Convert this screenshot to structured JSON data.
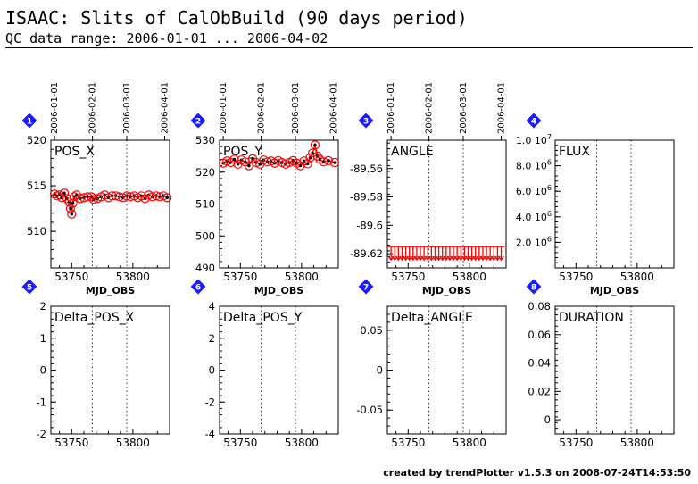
{
  "header": {
    "title": "ISAAC: Slits of CalObBuild (90 days period)",
    "subtitle": "QC data range: 2006-01-01 ... 2006-04-02"
  },
  "footer": {
    "text": "created by trendPlotter v1.5.3 on 2008-07-24T14:53:50"
  },
  "colors": {
    "data_point": "#ff0000",
    "marker_fill": "#000000",
    "badge": "#1a1aff"
  },
  "date_ticks": [
    {
      "label": "2006-01-01",
      "mjd": 53736
    },
    {
      "label": "2006-02-01",
      "mjd": 53767
    },
    {
      "label": "2006-03-01",
      "mjd": 53795
    },
    {
      "label": "2006-04-01",
      "mjd": 53826
    }
  ],
  "chart_data": [
    {
      "type": "scatter",
      "panel_number": "1",
      "label": "POS_X",
      "xlabel": "MJD_OBS",
      "xlabel_shown": true,
      "xlim": [
        53733,
        53830
      ],
      "ylim": [
        506,
        520
      ],
      "xticks": [
        "53750",
        "53800"
      ],
      "xtick_values": [
        53750,
        53800
      ],
      "yticks": [
        "510",
        "515",
        "520"
      ],
      "ytick_values": [
        510,
        515,
        520
      ],
      "date_axis": true,
      "line": true,
      "x": [
        53736,
        53738,
        53740,
        53742,
        53744,
        53746,
        53748,
        53749,
        53750,
        53751,
        53752,
        53754,
        53757,
        53760,
        53763,
        53766,
        53768,
        53771,
        53774,
        53777,
        53780,
        53783,
        53786,
        53789,
        53792,
        53795,
        53798,
        53801,
        53804,
        53807,
        53810,
        53813,
        53816,
        53819,
        53822,
        53825,
        53828
      ],
      "y": [
        514.1,
        513.9,
        514.0,
        513.7,
        514.2,
        513.6,
        513.2,
        512.5,
        511.9,
        513.1,
        513.8,
        514.0,
        513.6,
        513.7,
        513.8,
        513.8,
        513.5,
        513.6,
        513.8,
        514.0,
        513.7,
        513.9,
        513.9,
        513.8,
        513.7,
        513.9,
        513.8,
        513.9,
        513.7,
        513.9,
        513.6,
        514.0,
        513.8,
        513.9,
        513.8,
        513.9,
        513.7
      ]
    },
    {
      "type": "scatter",
      "panel_number": "2",
      "label": "POS_Y",
      "xlabel": "MJD_OBS",
      "xlabel_shown": true,
      "xlim": [
        53733,
        53830
      ],
      "ylim": [
        490,
        530
      ],
      "xticks": [
        "53750",
        "53800"
      ],
      "xtick_values": [
        53750,
        53800
      ],
      "yticks": [
        "490",
        "500",
        "510",
        "520",
        "530"
      ],
      "ytick_values": [
        490,
        500,
        510,
        520,
        530
      ],
      "date_axis": true,
      "line": true,
      "x": [
        53736,
        53739,
        53742,
        53745,
        53748,
        53751,
        53754,
        53757,
        53760,
        53763,
        53766,
        53769,
        53772,
        53775,
        53778,
        53781,
        53784,
        53787,
        53790,
        53793,
        53796,
        53799,
        53802,
        53805,
        53807,
        53809,
        53811,
        53813,
        53815,
        53818,
        53822,
        53827
      ],
      "y": [
        522.8,
        523.5,
        523.0,
        524.0,
        522.5,
        523.8,
        523.2,
        522.0,
        524.2,
        523.0,
        522.5,
        523.8,
        523.2,
        523.5,
        522.8,
        523.6,
        523.0,
        522.5,
        523.0,
        523.6,
        522.8,
        522.0,
        523.5,
        522.6,
        524.5,
        526.0,
        528.5,
        525.0,
        524.0,
        523.2,
        523.6,
        523.0
      ]
    },
    {
      "type": "scatter",
      "panel_number": "3",
      "label": "ANGLE",
      "xlabel": "MJD_OBS",
      "xlabel_shown": true,
      "xlim": [
        53733,
        53830
      ],
      "ylim": [
        -89.63,
        -89.54
      ],
      "xticks": [
        "53750",
        "53800"
      ],
      "xtick_values": [
        53750,
        53800
      ],
      "yticks": [
        "-89.56",
        "-89.58",
        "-89.6",
        "-89.62"
      ],
      "ytick_values": [
        -89.56,
        -89.58,
        -89.6,
        -89.62
      ],
      "date_axis": true,
      "line": false,
      "marker": "arrow-down",
      "x": [
        53736,
        53739,
        53742,
        53745,
        53748,
        53751,
        53754,
        53757,
        53760,
        53763,
        53766,
        53769,
        53772,
        53775,
        53778,
        53781,
        53784,
        53787,
        53790,
        53793,
        53796,
        53799,
        53802,
        53805,
        53808,
        53811,
        53814,
        53817,
        53820,
        53823,
        53826
      ],
      "y": [
        -89.62,
        -89.62,
        -89.62,
        -89.62,
        -89.62,
        -89.62,
        -89.62,
        -89.62,
        -89.62,
        -89.62,
        -89.62,
        -89.62,
        -89.62,
        -89.62,
        -89.62,
        -89.62,
        -89.62,
        -89.62,
        -89.62,
        -89.62,
        -89.62,
        -89.62,
        -89.62,
        -89.62,
        -89.62,
        -89.62,
        -89.62,
        -89.62,
        -89.62,
        -89.62,
        -89.62
      ]
    },
    {
      "type": "scatter",
      "panel_number": "4",
      "label": "FLUX",
      "xlabel": "MJD_OBS",
      "xlabel_shown": true,
      "xlim": [
        53733,
        53830
      ],
      "ylim": [
        0,
        10000000
      ],
      "xticks": [
        "53750",
        "53800"
      ],
      "xtick_values": [
        53750,
        53800
      ],
      "ytick_values": [
        0,
        2000000,
        4000000,
        6000000,
        8000000,
        10000000
      ],
      "ytick_labels": [
        {
          "m": "",
          "e": ""
        },
        {
          "m": "2.0 10",
          "e": "6"
        },
        {
          "m": "4.0 10",
          "e": "6"
        },
        {
          "m": "6.0 10",
          "e": "6"
        },
        {
          "m": "8.0 10",
          "e": "6"
        },
        {
          "m": "1.0 10",
          "e": "7"
        }
      ],
      "date_axis": false,
      "line": false,
      "x": [],
      "y": []
    },
    {
      "type": "scatter",
      "panel_number": "5",
      "label": "Delta_POS_X",
      "xlabel": "",
      "xlabel_shown": false,
      "xlim": [
        53733,
        53830
      ],
      "ylim": [
        -2,
        2
      ],
      "xticks": [
        "53750",
        "53800"
      ],
      "xtick_values": [
        53750,
        53800
      ],
      "yticks": [
        "-2",
        "-1",
        "0",
        "1",
        "2"
      ],
      "ytick_values": [
        -2,
        -1,
        0,
        1,
        2
      ],
      "date_axis": false,
      "line": false,
      "x": [],
      "y": []
    },
    {
      "type": "scatter",
      "panel_number": "6",
      "label": "Delta_POS_Y",
      "xlabel": "",
      "xlabel_shown": false,
      "xlim": [
        53733,
        53830
      ],
      "ylim": [
        -4,
        4
      ],
      "xticks": [
        "53750",
        "53800"
      ],
      "xtick_values": [
        53750,
        53800
      ],
      "yticks": [
        "-4",
        "-2",
        "0",
        "2",
        "4"
      ],
      "ytick_values": [
        -4,
        -2,
        0,
        2,
        4
      ],
      "date_axis": false,
      "line": false,
      "x": [],
      "y": []
    },
    {
      "type": "scatter",
      "panel_number": "7",
      "label": "Delta_ANGLE",
      "xlabel": "",
      "xlabel_shown": false,
      "xlim": [
        53733,
        53830
      ],
      "ylim": [
        -0.08,
        0.08
      ],
      "xticks": [
        "53750",
        "53800"
      ],
      "xtick_values": [
        53750,
        53800
      ],
      "yticks": [
        "-0.05",
        "0",
        "0.05"
      ],
      "ytick_values": [
        -0.05,
        0,
        0.05
      ],
      "date_axis": false,
      "line": false,
      "x": [],
      "y": []
    },
    {
      "type": "scatter",
      "panel_number": "8",
      "label": "DURATION",
      "xlabel": "",
      "xlabel_shown": false,
      "xlim": [
        53733,
        53830
      ],
      "ylim": [
        -0.01,
        0.08
      ],
      "xticks": [
        "53750",
        "53800"
      ],
      "xtick_values": [
        53750,
        53800
      ],
      "yticks": [
        "0",
        "0.02",
        "0.04",
        "0.06",
        "0.08"
      ],
      "ytick_values": [
        0,
        0.02,
        0.04,
        0.06,
        0.08
      ],
      "date_axis": false,
      "line": false,
      "x": [],
      "y": []
    }
  ]
}
